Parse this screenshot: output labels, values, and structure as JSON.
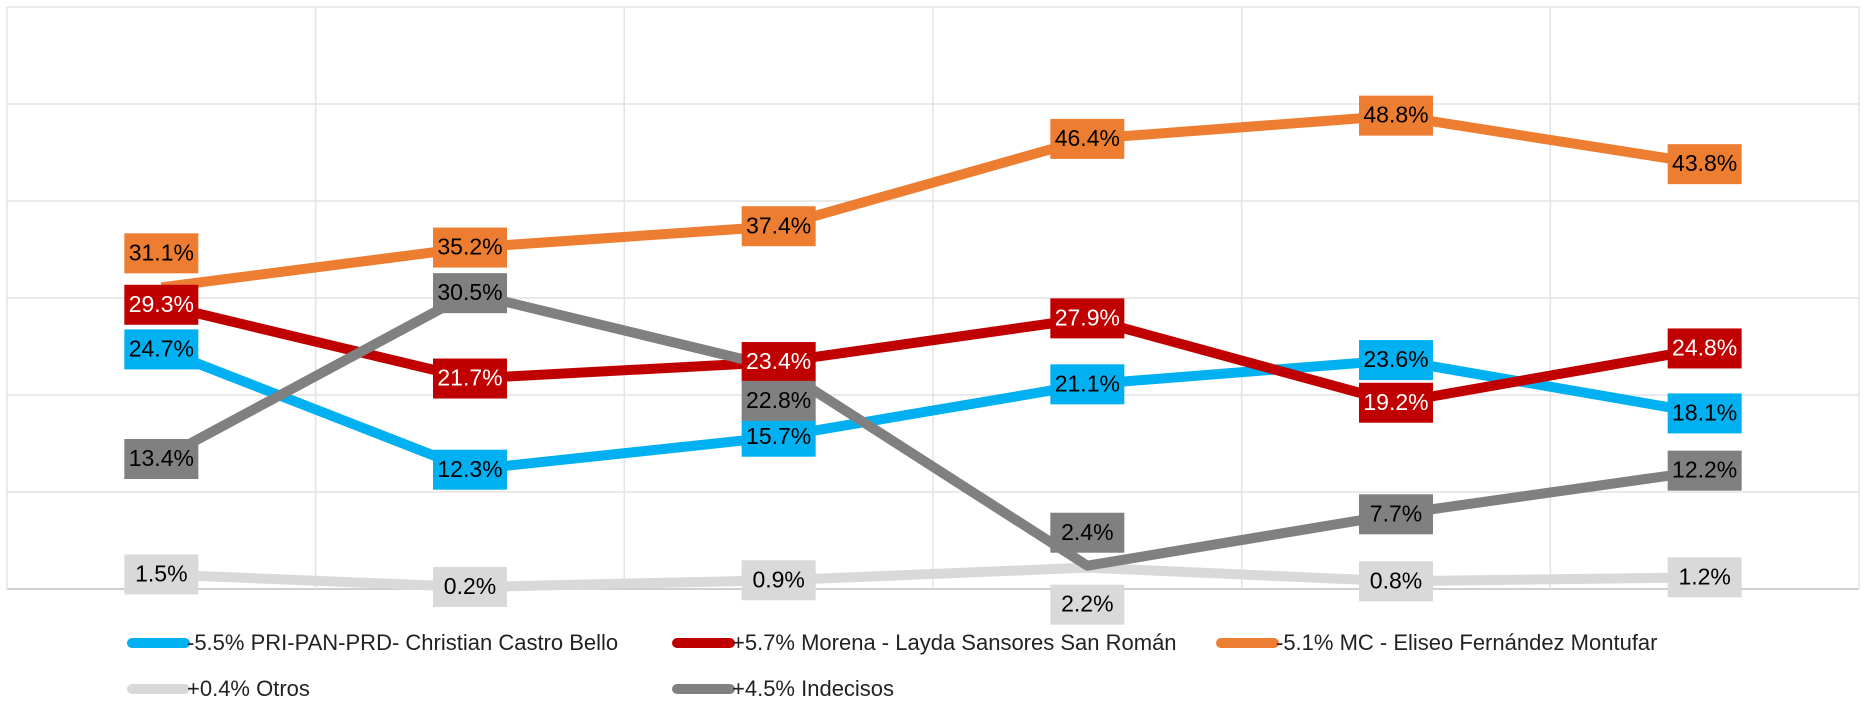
{
  "chart_data": {
    "type": "line",
    "categories": [
      null,
      null,
      null,
      null,
      null,
      null
    ],
    "series": [
      {
        "name": "-5.5% PRI-PAN-PRD- Christian Castro Bello",
        "color": "#00b0f0",
        "values": [
          24.7,
          12.3,
          15.7,
          21.1,
          23.6,
          18.1
        ],
        "value_labels": [
          "24.7%",
          "12.3%",
          "15.7%",
          "21.1%",
          "23.6%",
          "18.1%"
        ]
      },
      {
        "name": "+5.7% Morena - Layda Sansores San Román",
        "color": "#c00000",
        "values": [
          29.3,
          21.7,
          23.4,
          27.9,
          19.2,
          24.8
        ],
        "value_labels": [
          "29.3%",
          "21.7%",
          "23.4%",
          "27.9%",
          "19.2%",
          "24.8%"
        ]
      },
      {
        "name": "-5.1% MC - Eliseo Fernández Montufar",
        "color": "#ed7d31",
        "values": [
          31.1,
          35.2,
          37.4,
          46.4,
          48.8,
          43.8
        ],
        "value_labels": [
          "31.1%",
          "35.2%",
          "37.4%",
          "46.4%",
          "48.8%",
          "43.8%"
        ]
      },
      {
        "name": "+0.4% Otros",
        "color": "#d9d9d9",
        "values": [
          1.5,
          0.2,
          0.9,
          2.2,
          0.8,
          1.2
        ],
        "value_labels": [
          "1.5%",
          "0.2%",
          "0.9%",
          "2.2%",
          "0.8%",
          "1.2%"
        ]
      },
      {
        "name": "+4.5% Indecisos",
        "color": "#808080",
        "values": [
          13.4,
          30.5,
          22.8,
          2.4,
          7.7,
          12.2
        ],
        "value_labels": [
          "13.4%",
          "30.5%",
          "22.8%",
          "2.4%",
          "7.7%",
          "12.2%"
        ]
      }
    ],
    "ylim": [
      0,
      60
    ],
    "yticks": [
      0,
      10,
      20,
      30,
      40,
      50,
      60
    ],
    "grid": true
  }
}
